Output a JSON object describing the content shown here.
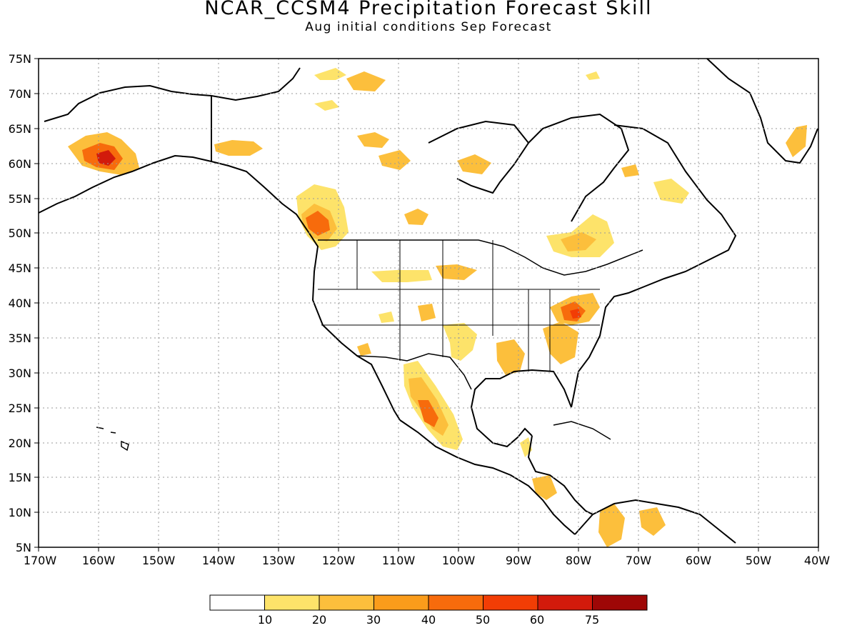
{
  "title": "NCAR_CCSM4 Precipitation Forecast Skill",
  "subtitle": "Aug initial conditions  Sep Forecast",
  "map": {
    "lat_ticks": [
      "75N",
      "70N",
      "65N",
      "60N",
      "55N",
      "50N",
      "45N",
      "40N",
      "35N",
      "30N",
      "25N",
      "20N",
      "15N",
      "10N",
      "5N"
    ],
    "lon_ticks": [
      "170W",
      "160W",
      "150W",
      "140W",
      "130W",
      "120W",
      "110W",
      "100W",
      "90W",
      "80W",
      "70W",
      "60W",
      "50W",
      "40W"
    ],
    "grid": "dotted"
  },
  "legend": {
    "labels": [
      "10",
      "20",
      "30",
      "40",
      "50",
      "60",
      "75"
    ],
    "colors": [
      "#ffffff",
      "#fde36a",
      "#fcbf3c",
      "#fa9c1b",
      "#f76b0c",
      "#f23d05",
      "#d21a0b",
      "#9e0706"
    ]
  },
  "colors": {
    "land_outline": "#000000",
    "grid": "#999999"
  }
}
